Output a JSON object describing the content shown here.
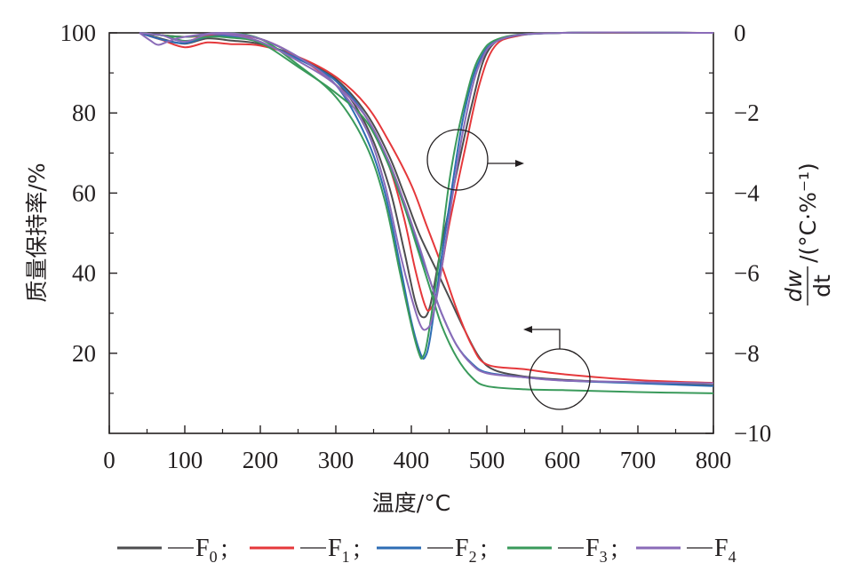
{
  "chart_data": {
    "type": "line",
    "xlabel": "温度/°C",
    "ylabel_left": "质量保持率/%",
    "ylabel_right": {
      "numerator": "dw",
      "denominator": "dt",
      "unit": "/(°C·%⁻¹)"
    },
    "xlim": [
      0,
      800
    ],
    "ylim_left": [
      0,
      100
    ],
    "ylim_right": [
      -10,
      0
    ],
    "x_ticks": [
      "0",
      "100",
      "200",
      "300",
      "400",
      "500",
      "600",
      "700",
      "800"
    ],
    "y_left_ticks": [
      "20",
      "40",
      "60",
      "80",
      "100"
    ],
    "y_right_ticks": [
      "0",
      "−2",
      "−4",
      "−6",
      "−8",
      "−10"
    ],
    "grid": false,
    "legend_position": "bottom",
    "annotations": [
      {
        "shape": "circle",
        "refers_to": "dtg",
        "arrow": "right"
      },
      {
        "shape": "circle",
        "refers_to": "tg",
        "arrow": "left"
      }
    ],
    "series": [
      {
        "name": "F0",
        "sub": "0",
        "color": "#4d4d4f",
        "tg": [
          [
            40,
            100
          ],
          [
            70,
            98.5
          ],
          [
            100,
            97.3
          ],
          [
            130,
            98.6
          ],
          [
            160,
            98.1
          ],
          [
            200,
            97.2
          ],
          [
            250,
            94
          ],
          [
            300,
            88.5
          ],
          [
            340,
            80
          ],
          [
            370,
            69.5
          ],
          [
            390,
            60
          ],
          [
            410,
            50
          ],
          [
            430,
            42
          ],
          [
            450,
            34
          ],
          [
            470,
            26
          ],
          [
            490,
            19
          ],
          [
            510,
            15.8
          ],
          [
            550,
            14.2
          ],
          [
            600,
            13.4
          ],
          [
            700,
            12.6
          ],
          [
            800,
            12
          ]
        ],
        "dtg": [
          [
            40,
            0
          ],
          [
            100,
            -0.1
          ],
          [
            150,
            0
          ],
          [
            200,
            -0.15
          ],
          [
            250,
            -0.6
          ],
          [
            300,
            -1.2
          ],
          [
            340,
            -2.3
          ],
          [
            370,
            -3.8
          ],
          [
            390,
            -5.4
          ],
          [
            405,
            -6.7
          ],
          [
            415,
            -7.1
          ],
          [
            425,
            -6.8
          ],
          [
            440,
            -5.3
          ],
          [
            460,
            -3.5
          ],
          [
            480,
            -1.8
          ],
          [
            500,
            -0.5
          ],
          [
            530,
            -0.1
          ],
          [
            600,
            0
          ],
          [
            800,
            0
          ]
        ]
      },
      {
        "name": "F1",
        "sub": "1",
        "color": "#e5383b",
        "tg": [
          [
            40,
            100
          ],
          [
            70,
            98.2
          ],
          [
            100,
            96.4
          ],
          [
            130,
            97.6
          ],
          [
            160,
            97.2
          ],
          [
            200,
            96.8
          ],
          [
            250,
            94
          ],
          [
            300,
            89
          ],
          [
            340,
            82
          ],
          [
            370,
            73
          ],
          [
            400,
            62
          ],
          [
            420,
            52
          ],
          [
            440,
            42
          ],
          [
            460,
            31
          ],
          [
            480,
            22
          ],
          [
            500,
            17.2
          ],
          [
            550,
            16
          ],
          [
            600,
            14.8
          ],
          [
            700,
            13.3
          ],
          [
            800,
            12.6
          ]
        ],
        "dtg": [
          [
            40,
            0
          ],
          [
            100,
            -0.1
          ],
          [
            150,
            -0.05
          ],
          [
            200,
            -0.15
          ],
          [
            250,
            -0.6
          ],
          [
            300,
            -1.3
          ],
          [
            340,
            -2.1
          ],
          [
            370,
            -3.3
          ],
          [
            390,
            -4.6
          ],
          [
            405,
            -5.9
          ],
          [
            418,
            -6.8
          ],
          [
            425,
            -6.9
          ],
          [
            435,
            -6.4
          ],
          [
            450,
            -4.8
          ],
          [
            470,
            -3
          ],
          [
            490,
            -1.3
          ],
          [
            510,
            -0.35
          ],
          [
            540,
            -0.08
          ],
          [
            600,
            0
          ],
          [
            800,
            0
          ]
        ]
      },
      {
        "name": "F2",
        "sub": "2",
        "color": "#2e6db4",
        "tg": [
          [
            40,
            100
          ],
          [
            70,
            98.3
          ],
          [
            100,
            97.4
          ],
          [
            130,
            99
          ],
          [
            160,
            99.2
          ],
          [
            200,
            97.6
          ],
          [
            250,
            93.5
          ],
          [
            300,
            88
          ],
          [
            340,
            79
          ],
          [
            370,
            67
          ],
          [
            390,
            57
          ],
          [
            410,
            46
          ],
          [
            425,
            38
          ],
          [
            440,
            30
          ],
          [
            460,
            22
          ],
          [
            480,
            17.5
          ],
          [
            500,
            15.2
          ],
          [
            550,
            14
          ],
          [
            600,
            13.2
          ],
          [
            700,
            12.5
          ],
          [
            800,
            11.8
          ]
        ],
        "dtg": [
          [
            40,
            0
          ],
          [
            100,
            -0.1
          ],
          [
            150,
            0
          ],
          [
            200,
            -0.15
          ],
          [
            250,
            -0.6
          ],
          [
            300,
            -1.3
          ],
          [
            340,
            -2.6
          ],
          [
            365,
            -4
          ],
          [
            385,
            -5.8
          ],
          [
            400,
            -7.2
          ],
          [
            412,
            -8
          ],
          [
            418,
            -8.1
          ],
          [
            425,
            -7.6
          ],
          [
            440,
            -5.6
          ],
          [
            455,
            -3.7
          ],
          [
            470,
            -2
          ],
          [
            490,
            -0.7
          ],
          [
            520,
            -0.15
          ],
          [
            600,
            0
          ],
          [
            800,
            0
          ]
        ]
      },
      {
        "name": "F3",
        "sub": "3",
        "color": "#3a9a5b",
        "tg": [
          [
            40,
            100
          ],
          [
            70,
            99.4
          ],
          [
            100,
            98
          ],
          [
            130,
            99
          ],
          [
            160,
            98.8
          ],
          [
            200,
            97.5
          ],
          [
            250,
            91.5
          ],
          [
            300,
            85
          ],
          [
            340,
            78
          ],
          [
            370,
            67
          ],
          [
            390,
            57
          ],
          [
            410,
            45
          ],
          [
            425,
            36
          ],
          [
            440,
            27
          ],
          [
            460,
            19
          ],
          [
            480,
            14
          ],
          [
            500,
            11.8
          ],
          [
            550,
            11
          ],
          [
            600,
            10.8
          ],
          [
            700,
            10.3
          ],
          [
            800,
            10
          ]
        ],
        "dtg": [
          [
            40,
            0
          ],
          [
            100,
            -0.1
          ],
          [
            150,
            0
          ],
          [
            200,
            -0.15
          ],
          [
            250,
            -0.8
          ],
          [
            300,
            -1.6
          ],
          [
            340,
            -2.8
          ],
          [
            365,
            -4.2
          ],
          [
            385,
            -6
          ],
          [
            400,
            -7.3
          ],
          [
            410,
            -8
          ],
          [
            415,
            -8.1
          ],
          [
            422,
            -7.6
          ],
          [
            438,
            -5.5
          ],
          [
            452,
            -3.5
          ],
          [
            470,
            -1.8
          ],
          [
            490,
            -0.6
          ],
          [
            520,
            -0.12
          ],
          [
            600,
            0
          ],
          [
            800,
            0
          ]
        ]
      },
      {
        "name": "F4",
        "sub": "4",
        "color": "#8a6bb8",
        "tg": [
          [
            40,
            100
          ],
          [
            60,
            99.6
          ],
          [
            70,
            99.4
          ],
          [
            100,
            97.8
          ],
          [
            130,
            99.6
          ],
          [
            160,
            99.5
          ],
          [
            200,
            97.8
          ],
          [
            250,
            93
          ],
          [
            300,
            87
          ],
          [
            340,
            79
          ],
          [
            370,
            68
          ],
          [
            390,
            58
          ],
          [
            410,
            47
          ],
          [
            425,
            38
          ],
          [
            440,
            30
          ],
          [
            460,
            22
          ],
          [
            480,
            17.2
          ],
          [
            500,
            15
          ],
          [
            550,
            14
          ],
          [
            600,
            13.2
          ],
          [
            700,
            12.8
          ],
          [
            800,
            12.5
          ]
        ],
        "dtg": [
          [
            40,
            0
          ],
          [
            55,
            -0.2
          ],
          [
            65,
            -0.3
          ],
          [
            80,
            -0.2
          ],
          [
            100,
            -0.1
          ],
          [
            150,
            0
          ],
          [
            200,
            -0.15
          ],
          [
            250,
            -0.6
          ],
          [
            300,
            -1.3
          ],
          [
            340,
            -2.4
          ],
          [
            365,
            -3.8
          ],
          [
            385,
            -5.5
          ],
          [
            400,
            -6.6
          ],
          [
            412,
            -7.3
          ],
          [
            420,
            -7.4
          ],
          [
            428,
            -7.1
          ],
          [
            440,
            -5.9
          ],
          [
            455,
            -4
          ],
          [
            470,
            -2.3
          ],
          [
            490,
            -0.8
          ],
          [
            520,
            -0.15
          ],
          [
            600,
            0
          ],
          [
            800,
            0
          ]
        ]
      }
    ]
  }
}
